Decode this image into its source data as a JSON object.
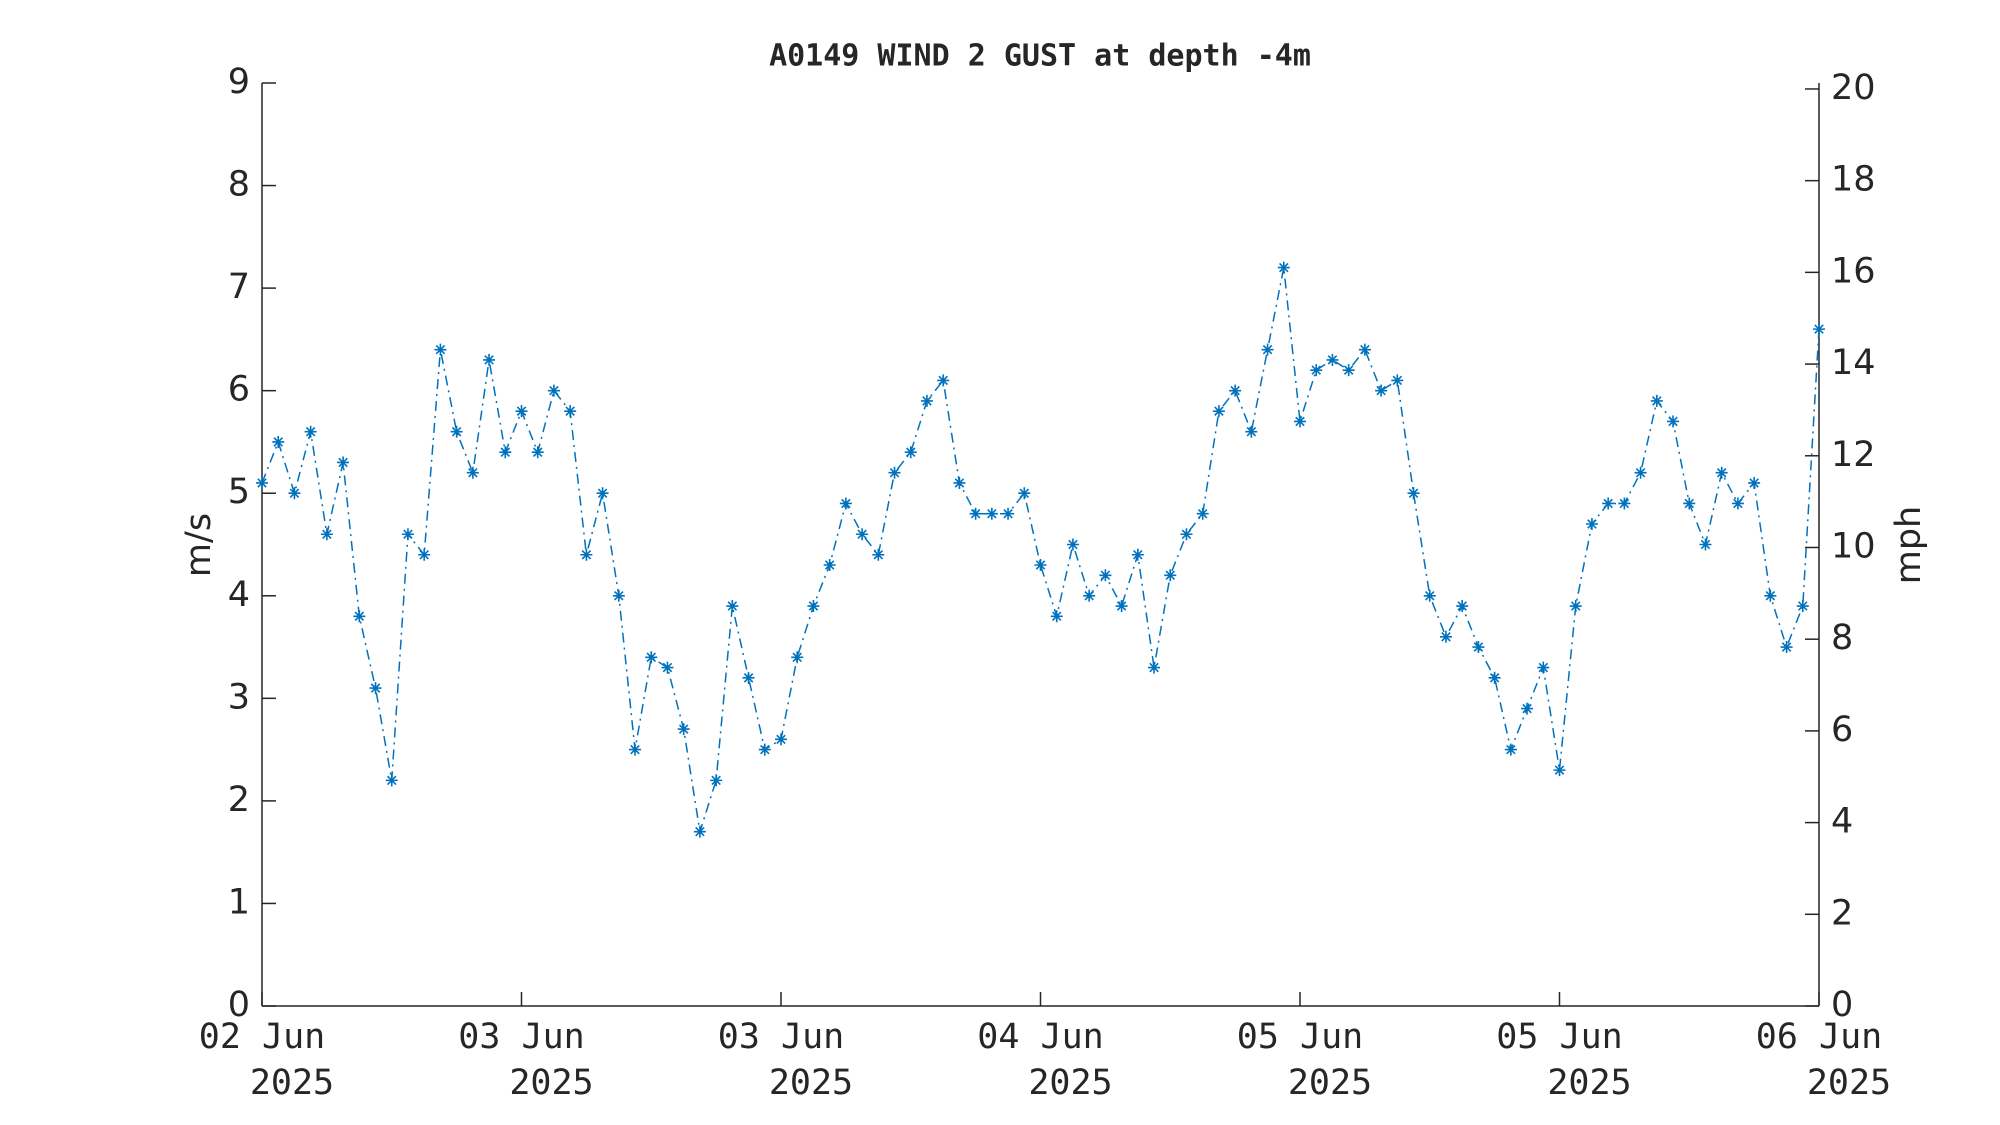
{
  "chart_data": {
    "type": "line",
    "title": "A0149 WIND 2 GUST at depth -4m",
    "ylabel": "m/s",
    "y2label": "mph",
    "x": [
      0,
      1,
      2,
      3,
      4,
      5,
      6,
      7,
      8,
      9,
      10,
      11,
      12,
      13,
      14,
      15,
      16,
      17,
      18,
      19,
      20,
      21,
      22,
      23,
      24,
      25,
      26,
      27,
      28,
      29,
      30,
      31,
      32,
      33,
      34,
      35,
      36,
      37,
      38,
      39,
      40,
      41,
      42,
      43,
      44,
      45,
      46,
      47,
      48,
      49,
      50,
      51,
      52,
      53,
      54,
      55,
      56,
      57,
      58,
      59,
      60,
      61,
      62,
      63,
      64,
      65,
      66,
      67,
      68,
      69,
      70,
      71,
      72,
      73,
      74,
      75,
      76,
      77,
      78,
      79,
      80,
      81,
      82,
      83,
      84,
      85,
      86,
      87,
      88,
      89,
      90,
      91,
      92,
      93,
      94,
      95,
      96
    ],
    "series": [
      {
        "name": "WIND 2 GUST",
        "color": "#0072bd",
        "values": [
          5.1,
          5.5,
          5.0,
          5.6,
          4.6,
          5.3,
          3.8,
          3.1,
          2.2,
          4.6,
          4.4,
          6.4,
          5.6,
          5.2,
          6.3,
          5.4,
          5.8,
          5.4,
          6.0,
          5.8,
          4.4,
          5.0,
          4.0,
          2.5,
          3.4,
          3.3,
          2.7,
          1.7,
          2.2,
          3.9,
          3.2,
          2.5,
          2.6,
          3.4,
          3.9,
          4.3,
          4.9,
          4.6,
          4.4,
          5.2,
          5.4,
          5.9,
          6.1,
          5.1,
          4.8,
          4.8,
          4.8,
          5.0,
          4.3,
          3.8,
          4.5,
          4.0,
          4.2,
          3.9,
          4.4,
          3.3,
          4.2,
          4.6,
          4.8,
          5.8,
          6.0,
          5.6,
          6.4,
          7.2,
          5.7,
          6.2,
          6.3,
          6.2,
          6.4,
          6.0,
          6.1,
          5.0,
          4.0,
          3.6,
          3.9,
          3.5,
          3.2,
          2.5,
          2.9,
          3.3,
          2.3,
          3.9,
          4.7,
          4.9,
          4.9,
          5.2,
          5.9,
          5.7,
          4.9,
          4.5,
          5.2,
          4.9,
          5.1,
          4.0,
          3.5,
          3.9,
          6.6
        ]
      }
    ],
    "xlim": [
      0,
      96
    ],
    "xticks": [
      {
        "value": 0,
        "label": "02 Jun\n2025"
      },
      {
        "value": 16,
        "label": "03 Jun\n2025"
      },
      {
        "value": 32,
        "label": "03 Jun\n2025"
      },
      {
        "value": 48,
        "label": "04 Jun\n2025"
      },
      {
        "value": 64,
        "label": "05 Jun\n2025"
      },
      {
        "value": 80,
        "label": "05 Jun\n2025"
      },
      {
        "value": 96,
        "label": "06 Jun\n2025"
      }
    ],
    "ylim": [
      0,
      9
    ],
    "yticks": [
      0,
      1,
      2,
      3,
      4,
      5,
      6,
      7,
      8,
      9
    ],
    "y2lim": [
      0,
      20.13
    ],
    "y2ticks": [
      0,
      2,
      4,
      6,
      8,
      10,
      12,
      14,
      16,
      18,
      20
    ],
    "grid": false
  }
}
